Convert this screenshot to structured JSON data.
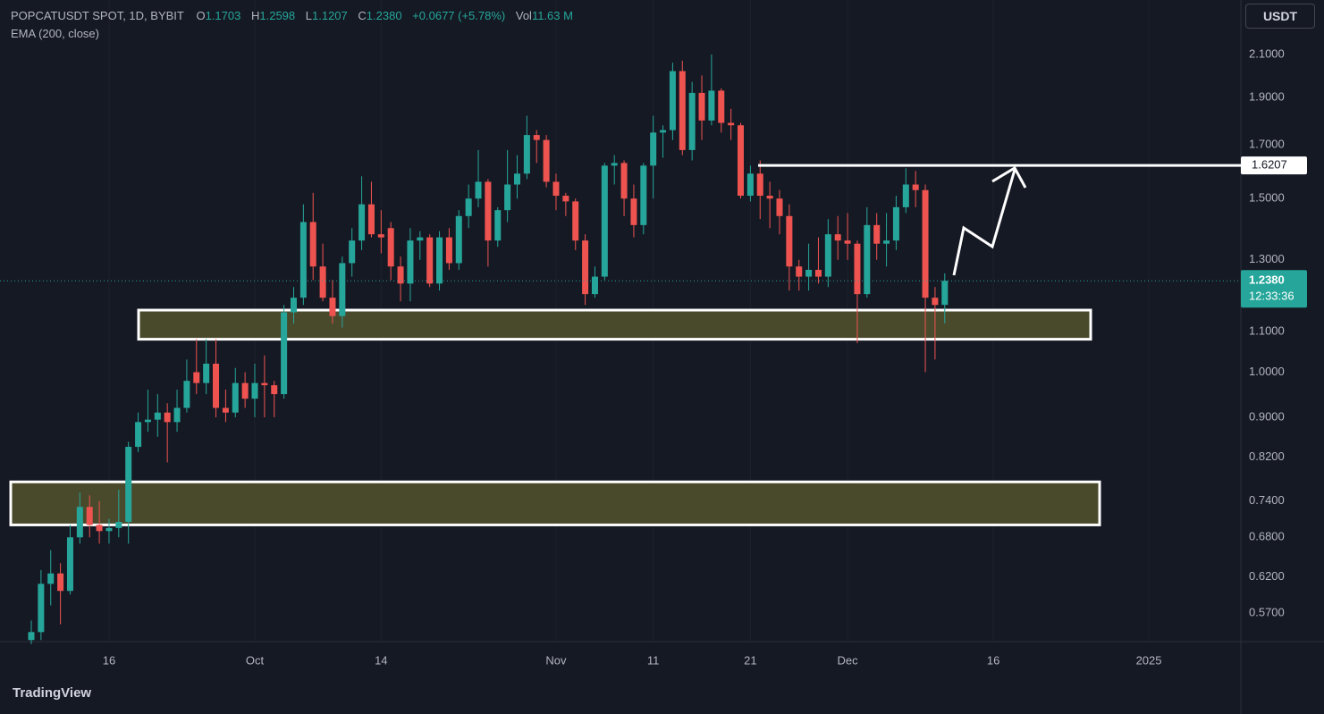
{
  "header": {
    "symbol": "POPCATUSDT SPOT, 1D, BYBIT",
    "open_label": "O",
    "open": "1.1703",
    "high_label": "H",
    "high": "1.2598",
    "low_label": "L",
    "low": "1.1207",
    "close_label": "C",
    "close": "1.2380",
    "change": "+0.0677 (+5.78%)",
    "volume_label": "Vol",
    "volume": "11.63 M",
    "indicator": "EMA (200, close)",
    "currency": "USDT",
    "countdown": "12:33:36"
  },
  "brand": "TradingView",
  "chart_data": {
    "type": "candlestick",
    "log_scale": true,
    "grid": true,
    "up_color": "#26a69a",
    "down_color": "#ef5350",
    "categories": [
      null,
      null,
      null,
      null,
      null,
      null,
      null,
      null,
      "16",
      null,
      null,
      null,
      null,
      null,
      null,
      null,
      null,
      null,
      null,
      null,
      null,
      null,
      null,
      "Oct",
      null,
      null,
      null,
      null,
      null,
      null,
      null,
      null,
      null,
      null,
      null,
      null,
      "14",
      null,
      null,
      null,
      null,
      null,
      null,
      null,
      null,
      null,
      null,
      null,
      null,
      null,
      null,
      null,
      null,
      null,
      "Nov",
      null,
      null,
      null,
      null,
      null,
      null,
      null,
      null,
      null,
      "11",
      null,
      null,
      null,
      null,
      null,
      null,
      null,
      null,
      null,
      "21",
      null,
      null,
      null,
      null,
      null,
      null,
      null,
      null,
      null,
      "Dec",
      null,
      null,
      null,
      null,
      null,
      null,
      null,
      null,
      null,
      null,
      null,
      null,
      null,
      null,
      "16",
      null,
      null,
      null,
      null,
      null,
      null,
      null,
      null,
      null,
      null,
      null,
      null,
      null,
      null,
      null,
      "2025",
      null,
      null,
      null,
      null,
      null,
      null,
      null
    ],
    "open": [
      0.535,
      0.545,
      0.61,
      0.625,
      0.6,
      0.68,
      0.73,
      0.7,
      0.69,
      0.695,
      0.705,
      0.84,
      0.89,
      0.895,
      0.91,
      0.89,
      0.92,
      1.0,
      0.975,
      1.02,
      0.92,
      0.91,
      0.975,
      0.94,
      0.975,
      0.97,
      0.95,
      1.15,
      1.19,
      1.42,
      1.28,
      1.19,
      1.14,
      1.29,
      1.36,
      1.48,
      1.38,
      1.4,
      1.28,
      1.23,
      1.36,
      1.37,
      1.23,
      1.37,
      1.29,
      1.44,
      1.5,
      1.56,
      1.36,
      1.46,
      1.55,
      1.59,
      1.74,
      1.72,
      1.56,
      1.51,
      1.49,
      1.36,
      1.2,
      1.25,
      1.62,
      1.63,
      1.5,
      1.41,
      1.62,
      1.75,
      1.76,
      2.02,
      1.68,
      1.92,
      1.8,
      1.93,
      1.79,
      1.78,
      1.51,
      1.59,
      1.51,
      1.5,
      1.44,
      1.28,
      1.25,
      1.27,
      1.25,
      1.38,
      1.36,
      1.35,
      1.2,
      1.41,
      1.35,
      1.36,
      1.47,
      1.55,
      1.53,
      1.19,
      1.1703,
      null,
      null,
      null,
      null,
      null,
      null,
      null,
      null,
      null,
      null,
      null,
      null,
      null,
      null,
      null,
      null,
      null,
      null,
      null,
      null,
      null,
      null,
      null,
      null,
      null,
      null,
      null,
      null
    ],
    "high": [
      0.56,
      0.63,
      0.66,
      0.64,
      0.7,
      0.755,
      0.75,
      0.74,
      0.71,
      0.76,
      0.85,
      0.91,
      0.96,
      0.95,
      0.93,
      0.96,
      1.03,
      1.08,
      1.08,
      1.08,
      0.96,
      1.01,
      1.0,
      1.02,
      1.04,
      0.98,
      1.17,
      1.22,
      1.48,
      1.52,
      1.35,
      1.24,
      1.31,
      1.4,
      1.58,
      1.56,
      1.46,
      1.42,
      1.31,
      1.4,
      1.39,
      1.38,
      1.39,
      1.4,
      1.46,
      1.55,
      1.68,
      1.57,
      1.47,
      1.68,
      1.66,
      1.82,
      1.76,
      1.74,
      1.59,
      1.52,
      1.5,
      1.38,
      1.28,
      1.63,
      1.66,
      1.64,
      1.55,
      1.63,
      1.82,
      1.78,
      2.06,
      2.07,
      1.97,
      2.0,
      2.1,
      1.94,
      1.85,
      1.79,
      1.62,
      1.64,
      1.56,
      1.53,
      1.48,
      1.3,
      1.35,
      1.37,
      1.43,
      1.44,
      1.45,
      1.36,
      1.47,
      1.45,
      1.45,
      1.51,
      1.61,
      1.6,
      1.55,
      1.22,
      1.2598,
      null,
      null,
      null,
      null,
      null,
      null,
      null,
      null,
      null,
      null,
      null,
      null,
      null,
      null,
      null,
      null,
      null,
      null,
      null,
      null,
      null,
      null,
      null,
      null,
      null,
      null,
      null,
      null
    ],
    "low": [
      0.53,
      0.535,
      0.58,
      0.555,
      0.595,
      0.67,
      0.68,
      0.67,
      0.67,
      0.68,
      0.67,
      0.83,
      0.87,
      0.86,
      0.81,
      0.87,
      0.91,
      0.95,
      0.95,
      0.9,
      0.89,
      0.9,
      0.92,
      0.9,
      0.9,
      0.9,
      0.94,
      1.12,
      1.17,
      1.24,
      1.18,
      1.12,
      1.11,
      1.25,
      1.33,
      1.37,
      1.32,
      1.24,
      1.18,
      1.18,
      1.3,
      1.22,
      1.21,
      1.27,
      1.27,
      1.4,
      1.47,
      1.28,
      1.34,
      1.42,
      1.5,
      1.57,
      1.63,
      1.54,
      1.46,
      1.44,
      1.33,
      1.17,
      1.19,
      1.24,
      1.55,
      1.44,
      1.37,
      1.38,
      1.5,
      1.65,
      1.72,
      1.66,
      1.64,
      1.72,
      1.78,
      1.75,
      1.72,
      1.5,
      1.49,
      1.43,
      1.4,
      1.38,
      1.21,
      1.21,
      1.21,
      1.23,
      1.22,
      1.3,
      1.3,
      1.07,
      1.19,
      1.3,
      1.28,
      1.33,
      1.45,
      1.47,
      1.0,
      1.03,
      1.1207,
      null,
      null,
      null,
      null,
      null,
      null,
      null,
      null,
      null,
      null,
      null,
      null,
      null,
      null,
      null,
      null,
      null,
      null,
      null,
      null,
      null,
      null,
      null,
      null,
      null,
      null,
      null,
      null
    ],
    "close": [
      0.545,
      0.61,
      0.625,
      0.6,
      0.68,
      0.73,
      0.7,
      0.69,
      0.695,
      0.705,
      0.84,
      0.89,
      0.895,
      0.91,
      0.89,
      0.92,
      0.98,
      0.975,
      1.02,
      0.92,
      0.91,
      0.975,
      0.94,
      0.975,
      0.97,
      0.95,
      1.15,
      1.19,
      1.42,
      1.28,
      1.19,
      1.14,
      1.29,
      1.36,
      1.48,
      1.38,
      1.37,
      1.28,
      1.23,
      1.36,
      1.37,
      1.23,
      1.37,
      1.29,
      1.44,
      1.5,
      1.56,
      1.36,
      1.46,
      1.55,
      1.59,
      1.74,
      1.72,
      1.56,
      1.51,
      1.49,
      1.36,
      1.2,
      1.25,
      1.62,
      1.63,
      1.5,
      1.41,
      1.62,
      1.75,
      1.76,
      2.02,
      1.68,
      1.92,
      1.8,
      1.93,
      1.79,
      1.78,
      1.51,
      1.59,
      1.51,
      1.5,
      1.44,
      1.28,
      1.25,
      1.27,
      1.25,
      1.38,
      1.36,
      1.35,
      1.2,
      1.41,
      1.35,
      1.36,
      1.47,
      1.55,
      1.53,
      1.19,
      1.17,
      1.238,
      null,
      null,
      null,
      null,
      null,
      null,
      null,
      null,
      null,
      null,
      null,
      null,
      null,
      null,
      null,
      null,
      null,
      null,
      null,
      null,
      null,
      null,
      null,
      null,
      null,
      null,
      null,
      null
    ],
    "ylim": [
      0.533,
      2.385
    ],
    "yticks": [
      {
        "value": 2.1,
        "label": "2.1000"
      },
      {
        "value": 1.9,
        "label": "1.9000"
      },
      {
        "value": 1.7,
        "label": "1.7000"
      },
      {
        "value": 1.5,
        "label": "1.5000"
      },
      {
        "value": 1.3,
        "label": "1.3000"
      },
      {
        "value": 1.1,
        "label": "1.1000"
      },
      {
        "value": 1.0,
        "label": "1.0000"
      },
      {
        "value": 0.9,
        "label": "0.9000"
      },
      {
        "value": 0.82,
        "label": "0.8200"
      },
      {
        "value": 0.74,
        "label": "0.7400"
      },
      {
        "value": 0.68,
        "label": "0.6800"
      },
      {
        "value": 0.62,
        "label": "0.6200"
      },
      {
        "value": 0.57,
        "label": "0.5700"
      }
    ],
    "last_price": {
      "value": 1.238,
      "label": "1.2380"
    },
    "resistance": {
      "value": 1.6207,
      "label": "1.6207"
    },
    "zones": [
      {
        "low": 1.08,
        "high": 1.156
      },
      {
        "low": 0.7,
        "high": 0.774
      }
    ]
  }
}
